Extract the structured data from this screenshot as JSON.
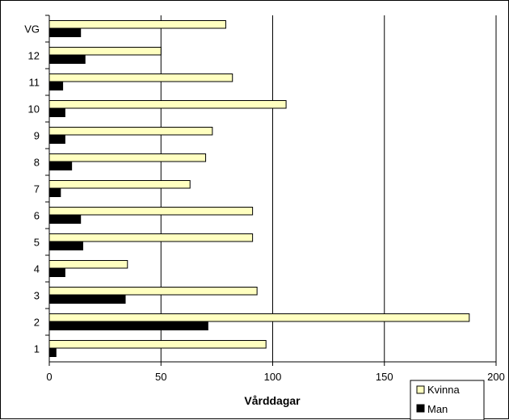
{
  "chart_data": {
    "type": "bar",
    "orientation": "horizontal",
    "categories": [
      "1",
      "2",
      "3",
      "4",
      "5",
      "6",
      "7",
      "8",
      "9",
      "10",
      "11",
      "12",
      "VG"
    ],
    "series": [
      {
        "name": "Kvinna",
        "color": "#FFFFC0",
        "values": [
          97,
          188,
          93,
          35,
          91,
          91,
          63,
          70,
          73,
          106,
          82,
          50,
          79
        ]
      },
      {
        "name": "Man",
        "color": "#000000",
        "values": [
          3,
          71,
          34,
          7,
          15,
          14,
          5,
          10,
          7,
          7,
          6,
          16,
          14
        ]
      }
    ],
    "xlabel": "Vårddagar",
    "ylabel": "",
    "xlim": [
      0,
      200
    ],
    "xticks": [
      0,
      50,
      100,
      150,
      200
    ],
    "grid": "vertical",
    "legend_position": "bottom-right"
  }
}
